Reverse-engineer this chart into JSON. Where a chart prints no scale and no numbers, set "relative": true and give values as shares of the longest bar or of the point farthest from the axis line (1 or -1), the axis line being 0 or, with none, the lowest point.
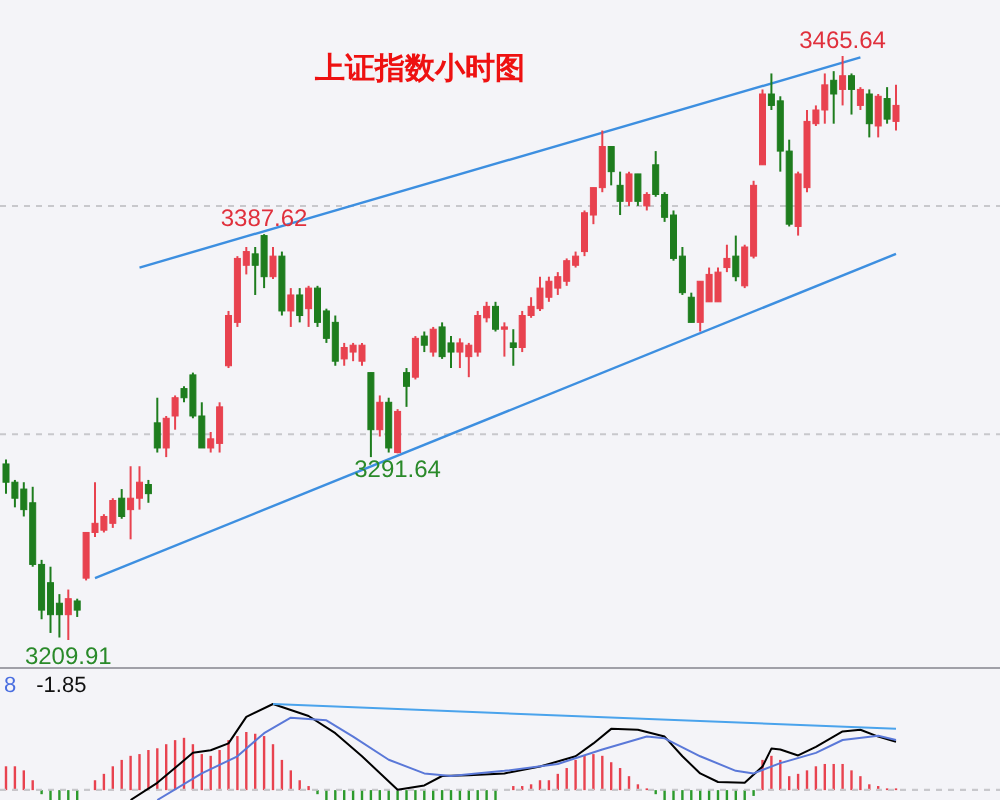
{
  "chart_data": [
    {
      "type": "candlestick",
      "title": "上证指数小时图",
      "grid": "y",
      "yticks": [
        {
          "value": 3300,
          "label": null
        },
        {
          "value": 3400,
          "label": null
        }
      ],
      "categories": [
        null,
        null,
        null,
        null,
        null,
        null,
        null,
        null,
        null,
        null,
        null,
        null,
        null,
        null,
        null,
        null,
        null,
        null,
        null,
        null,
        null,
        null,
        null,
        null,
        null,
        null,
        null,
        null,
        null,
        null,
        null,
        null,
        null,
        null,
        null,
        null,
        null,
        null,
        null,
        null,
        null,
        null,
        null,
        null,
        null,
        null,
        null,
        null,
        null,
        null,
        null,
        null,
        null,
        null,
        null,
        null,
        null,
        null,
        null,
        null,
        null,
        null,
        null,
        null,
        null,
        null,
        null,
        null,
        null,
        null,
        null,
        null,
        null,
        null,
        null,
        null,
        null,
        null,
        null,
        null,
        null,
        null,
        null,
        null,
        null,
        null,
        null,
        null,
        null,
        null,
        null,
        null,
        null,
        null,
        null,
        null,
        null,
        null,
        null,
        null,
        null
      ],
      "ohlc": [
        [
          3287,
          3289,
          3274,
          3279
        ],
        [
          3279,
          3280,
          3268,
          3272
        ],
        [
          3276,
          3279,
          3264,
          3267
        ],
        [
          3270,
          3277,
          3242,
          3243
        ],
        [
          3243,
          3245,
          3219,
          3223
        ],
        [
          3235,
          3242,
          3213,
          3221
        ],
        [
          3226,
          3230,
          3211,
          3221
        ],
        [
          3221,
          3232,
          3209.91,
          3228
        ],
        [
          3227,
          3228,
          3220,
          3223
        ],
        [
          3237,
          3257,
          3236,
          3257
        ],
        [
          3257,
          3279,
          3255,
          3261
        ],
        [
          3258,
          3265,
          3257,
          3264
        ],
        [
          3261,
          3272,
          3259,
          3271
        ],
        [
          3272,
          3276,
          3263,
          3264
        ],
        [
          3267,
          3286,
          3254,
          3272
        ],
        [
          3272,
          3286,
          3267,
          3279
        ],
        [
          3278,
          3280,
          3270,
          3274
        ],
        [
          3305,
          3316,
          3292,
          3294
        ],
        [
          3294,
          3308,
          3290,
          3307
        ],
        [
          3308,
          3317,
          3302,
          3316
        ],
        [
          3320,
          3321,
          3314,
          3316
        ],
        [
          3326,
          3327,
          3307,
          3308
        ],
        [
          3308,
          3314,
          3294,
          3294
        ],
        [
          3294,
          3301,
          3292,
          3298
        ],
        [
          3296,
          3314,
          3292,
          3312
        ],
        [
          3330,
          3354,
          3329,
          3352
        ],
        [
          3349,
          3378,
          3347,
          3377
        ],
        [
          3374,
          3382,
          3370,
          3380
        ],
        [
          3379,
          3382,
          3361,
          3374
        ],
        [
          3387,
          3387.62,
          3364,
          3369
        ],
        [
          3369,
          3382,
          3368,
          3378
        ],
        [
          3378,
          3380,
          3352,
          3354
        ],
        [
          3354,
          3364,
          3347,
          3361
        ],
        [
          3361,
          3364,
          3349,
          3352
        ],
        [
          3355,
          3365,
          3347,
          3364
        ],
        [
          3364,
          3365,
          3347,
          3349
        ],
        [
          3354,
          3355,
          3340,
          3342
        ],
        [
          3349,
          3352,
          3330,
          3332
        ],
        [
          3333,
          3340,
          3330,
          3338
        ],
        [
          3336,
          3340,
          3332,
          3339
        ],
        [
          3332,
          3340,
          3330,
          3339
        ],
        [
          3327,
          3327,
          3290,
          3302
        ],
        [
          3302,
          3317,
          3299,
          3314
        ],
        [
          3314,
          3316,
          3292,
          3294
        ],
        [
          3292,
          3311,
          3291.64,
          3310
        ],
        [
          3327,
          3329,
          3312,
          3321
        ],
        [
          3325,
          3343,
          3324,
          3342
        ],
        [
          3343,
          3345,
          3336,
          3339
        ],
        [
          3336,
          3347,
          3334,
          3346
        ],
        [
          3347,
          3349,
          3333,
          3334
        ],
        [
          3340,
          3343,
          3329,
          3336
        ],
        [
          3336,
          3342,
          3329,
          3340
        ],
        [
          3334,
          3340,
          3325,
          3339
        ],
        [
          3336,
          3354,
          3334,
          3352
        ],
        [
          3351,
          3358,
          3349,
          3356
        ],
        [
          3356,
          3358,
          3345,
          3346
        ],
        [
          3346,
          3349,
          3334,
          3347
        ],
        [
          3340,
          3346,
          3330,
          3338
        ],
        [
          3338,
          3354,
          3336,
          3352
        ],
        [
          3352,
          3360,
          3351,
          3356
        ],
        [
          3355,
          3369,
          3354,
          3364
        ],
        [
          3360,
          3369,
          3358,
          3367
        ],
        [
          3364,
          3371,
          3361,
          3369
        ],
        [
          3367,
          3377,
          3365,
          3376
        ],
        [
          3374,
          3380,
          3373,
          3378
        ],
        [
          3380,
          3398,
          3378,
          3397
        ],
        [
          3396,
          3408,
          3392,
          3408
        ],
        [
          3408,
          3433,
          3406,
          3426
        ],
        [
          3426,
          3426,
          3409,
          3415
        ],
        [
          3409,
          3415,
          3396,
          3402
        ],
        [
          3402,
          3415,
          3400,
          3414
        ],
        [
          3414,
          3414,
          3400,
          3402
        ],
        [
          3400,
          3406,
          3398,
          3405
        ],
        [
          3418,
          3424,
          3404,
          3405
        ],
        [
          3405,
          3406,
          3393,
          3395
        ],
        [
          3396,
          3398,
          3376,
          3377
        ],
        [
          3378,
          3382,
          3361,
          3362
        ],
        [
          3360,
          3362,
          3349,
          3349
        ],
        [
          3349,
          3367,
          3345,
          3367
        ],
        [
          3358,
          3373,
          3358,
          3370
        ],
        [
          3358,
          3373,
          3358,
          3371
        ],
        [
          3373,
          3383,
          3371,
          3377
        ],
        [
          3378,
          3387,
          3367,
          3369
        ],
        [
          3365,
          3383,
          3364,
          3382
        ],
        [
          3378,
          3411,
          3377,
          3409
        ],
        [
          3418,
          3451,
          3418,
          3449
        ],
        [
          3449,
          3458,
          3442,
          3444
        ],
        [
          3446,
          3448,
          3415,
          3424
        ],
        [
          3424,
          3429,
          3391,
          3392
        ],
        [
          3391,
          3415,
          3387,
          3414
        ],
        [
          3408,
          3442,
          3406,
          3437
        ],
        [
          3436,
          3444,
          3435,
          3442
        ],
        [
          3442,
          3458,
          3436,
          3453
        ],
        [
          3455,
          3459,
          3436,
          3449
        ],
        [
          3451,
          3465.64,
          3444,
          3457
        ],
        [
          3457,
          3458,
          3440,
          3451
        ],
        [
          3444,
          3452,
          3442,
          3451
        ],
        [
          3449,
          3451,
          3430,
          3436
        ],
        [
          3435,
          3449,
          3430,
          3448
        ],
        [
          3447,
          3452,
          3436,
          3438
        ],
        [
          3437,
          3453,
          3433,
          3444
        ]
      ],
      "series": [
        {
          "type": "line",
          "color": "#3d8fe0",
          "values": [
            null,
            null,
            null,
            null,
            null,
            null,
            null,
            null,
            null,
            null,
            null,
            null,
            null,
            null,
            null,
            3373,
            null,
            null,
            null,
            null,
            null,
            null,
            null,
            null,
            null,
            null,
            null,
            null,
            null,
            null,
            null,
            null,
            null,
            null,
            null,
            null,
            null,
            null,
            null,
            null,
            null,
            null,
            null,
            null,
            null,
            null,
            null,
            null,
            null,
            null,
            null,
            null,
            null,
            null,
            null,
            null,
            null,
            null,
            null,
            null,
            null,
            null,
            null,
            null,
            null,
            null,
            null,
            null,
            null,
            null,
            null,
            null,
            null,
            null,
            null,
            null,
            null,
            null,
            null,
            null,
            null,
            null,
            null,
            null,
            null,
            null,
            null,
            null,
            null,
            null,
            null,
            null,
            null,
            null,
            null,
            null,
            3465,
            null,
            null,
            null,
            null
          ]
        },
        {
          "type": "line",
          "color": "#3d8fe0",
          "values": [
            null,
            null,
            null,
            null,
            null,
            null,
            null,
            null,
            null,
            null,
            3237,
            null,
            null,
            null,
            null,
            null,
            null,
            null,
            null,
            null,
            null,
            null,
            null,
            null,
            null,
            null,
            null,
            null,
            null,
            null,
            null,
            null,
            null,
            null,
            null,
            null,
            null,
            null,
            null,
            null,
            null,
            null,
            null,
            null,
            null,
            null,
            null,
            null,
            null,
            null,
            null,
            null,
            null,
            null,
            null,
            null,
            null,
            null,
            null,
            null,
            null,
            null,
            null,
            null,
            null,
            null,
            null,
            null,
            null,
            null,
            null,
            null,
            null,
            null,
            null,
            null,
            null,
            null,
            null,
            null,
            null,
            null,
            null,
            null,
            null,
            null,
            null,
            null,
            null,
            null,
            null,
            null,
            null,
            null,
            null,
            null,
            null,
            null,
            null,
            null,
            3379
          ]
        }
      ],
      "annotations": [
        {
          "text": "3387.62",
          "y": 3387.62
        },
        {
          "text": "3291.64",
          "y": 3291.64
        },
        {
          "text": "3465.64",
          "y": 3465.64
        },
        {
          "text": "3209.91",
          "y": 3209.91
        }
      ]
    },
    {
      "type": "bar",
      "relative": true,
      "ref_lines": [
        {
          "axis": "y",
          "value": 0,
          "line_style": "dashed",
          "color": "#c8c8cc"
        }
      ],
      "categories": [
        null,
        null,
        null,
        null,
        null,
        null,
        null,
        null,
        null,
        null,
        null,
        null,
        null,
        null,
        null,
        null,
        null,
        null,
        null,
        null,
        null,
        null,
        null,
        null,
        null,
        null,
        null,
        null,
        null,
        null,
        null,
        null,
        null,
        null,
        null,
        null,
        null,
        null,
        null,
        null,
        null,
        null,
        null,
        null,
        null,
        null,
        null,
        null,
        null,
        null,
        null,
        null,
        null,
        null,
        null,
        null,
        null,
        null,
        null,
        null,
        null,
        null,
        null,
        null,
        null,
        null,
        null,
        null,
        null,
        null,
        null,
        null,
        null,
        null,
        null,
        null,
        null,
        null,
        null,
        null,
        null,
        null,
        null,
        null,
        null,
        null,
        null,
        null,
        null,
        null,
        null,
        null,
        null,
        null,
        null,
        null,
        null,
        null,
        null,
        null,
        null
      ],
      "values": [
        0.41,
        0.41,
        0.34,
        0.17,
        -0.07,
        -0.17,
        -0.17,
        -0.17,
        -0.17,
        null,
        0.17,
        0.28,
        0.41,
        0.52,
        0.59,
        0.62,
        0.69,
        0.72,
        0.79,
        0.86,
        0.9,
        0.79,
        0.62,
        0.59,
        0.69,
        0.86,
        0.93,
        1.0,
        0.97,
        0.93,
        0.79,
        0.52,
        0.34,
        0.17,
        0.07,
        -0.07,
        -0.17,
        -0.17,
        -0.17,
        -0.17,
        -0.17,
        -0.17,
        -0.17,
        -0.17,
        -0.17,
        -0.17,
        -0.17,
        -0.17,
        -0.17,
        -0.17,
        -0.17,
        -0.17,
        -0.17,
        -0.17,
        -0.17,
        -0.17,
        null,
        0.07,
        0.07,
        0.1,
        0.17,
        0.17,
        0.28,
        0.38,
        0.52,
        0.59,
        0.62,
        0.59,
        0.48,
        0.38,
        0.24,
        0.1,
        0.03,
        -0.07,
        -0.17,
        -0.17,
        -0.17,
        -0.17,
        -0.17,
        -0.17,
        -0.17,
        -0.17,
        -0.17,
        -0.17,
        -0.1,
        0.52,
        0.59,
        0.52,
        0.24,
        0.28,
        0.34,
        0.41,
        0.45,
        0.45,
        0.45,
        0.34,
        0.24,
        0.1,
        0.07,
        0.03,
        0.03
      ]
    },
    {
      "type": "line",
      "relative": true,
      "ref_lines": [
        {
          "axis": "y",
          "value": 0,
          "line_style": "dashed",
          "color": "#c8c8cc"
        }
      ],
      "categories": [
        null,
        null,
        null,
        null,
        null,
        null,
        null,
        null,
        null,
        null,
        null,
        null,
        null,
        null,
        null,
        null,
        null,
        null,
        null,
        null,
        null,
        null,
        null,
        null,
        null,
        null,
        null,
        null,
        null,
        null,
        null,
        null,
        null,
        null,
        null,
        null,
        null,
        null,
        null,
        null,
        null,
        null,
        null,
        null,
        null,
        null,
        null,
        null,
        null,
        null,
        null,
        null,
        null,
        null,
        null,
        null,
        null,
        null,
        null,
        null,
        null,
        null,
        null,
        null,
        null,
        null,
        null,
        null,
        null,
        null,
        null,
        null,
        null,
        null,
        null,
        null,
        null,
        null,
        null,
        null,
        null,
        null,
        null,
        null,
        null,
        null,
        null,
        null,
        null,
        null,
        null,
        null,
        null,
        null,
        null,
        null,
        null,
        null,
        null,
        null,
        null
      ],
      "series": [
        {
          "color": "#000000",
          "values": [
            null,
            null,
            null,
            null,
            null,
            null,
            null,
            null,
            null,
            null,
            null,
            null,
            null,
            null,
            -0.12,
            null,
            null,
            0.08,
            null,
            null,
            null,
            0.43,
            null,
            0.46,
            null,
            0.54,
            null,
            0.85,
            null,
            null,
            1.0,
            null,
            null,
            null,
            0.86,
            null,
            null,
            0.66,
            null,
            null,
            0.39,
            null,
            null,
            null,
            0,
            null,
            null,
            0.05,
            null,
            0.16,
            null,
            null,
            0.17,
            null,
            null,
            null,
            0.19,
            null,
            null,
            null,
            0.27,
            null,
            null,
            null,
            0.39,
            null,
            0.54,
            null,
            0.71,
            null,
            null,
            0.7,
            null,
            null,
            0.62,
            null,
            0.39,
            null,
            0.19,
            null,
            0.09,
            null,
            null,
            0.08,
            null,
            0.27,
            0.48,
            0.47,
            null,
            0.4,
            null,
            0.5,
            null,
            null,
            0.68,
            null,
            0.7,
            null,
            0.62,
            null,
            0.56
          ]
        },
        {
          "color": "#5a78d8",
          "values": [
            null,
            null,
            null,
            null,
            null,
            null,
            null,
            null,
            null,
            null,
            null,
            null,
            null,
            null,
            null,
            null,
            null,
            -0.12,
            null,
            null,
            null,
            null,
            0.19,
            null,
            null,
            null,
            0.39,
            null,
            null,
            0.66,
            null,
            null,
            0.84,
            null,
            null,
            null,
            0.81,
            null,
            null,
            0.62,
            null,
            null,
            null,
            0.35,
            null,
            null,
            null,
            0.19,
            null,
            null,
            0.16,
            null,
            null,
            null,
            null,
            null,
            0.22,
            null,
            null,
            null,
            null,
            null,
            0.3,
            null,
            null,
            null,
            null,
            0.47,
            null,
            null,
            null,
            null,
            0.62,
            null,
            0.6,
            null,
            null,
            null,
            0.39,
            null,
            null,
            null,
            0.22,
            null,
            0.19,
            null,
            null,
            0.31,
            null,
            null,
            null,
            0.43,
            null,
            null,
            0.58,
            null,
            null,
            null,
            0.63,
            null,
            0.58
          ]
        },
        {
          "color": "#4aa3ec",
          "values": [
            null,
            null,
            null,
            null,
            null,
            null,
            null,
            null,
            null,
            null,
            null,
            null,
            null,
            null,
            null,
            null,
            null,
            null,
            null,
            null,
            null,
            null,
            null,
            null,
            null,
            null,
            null,
            null,
            null,
            null,
            1.0,
            null,
            null,
            null,
            null,
            null,
            null,
            null,
            null,
            null,
            null,
            null,
            null,
            null,
            null,
            null,
            null,
            null,
            null,
            null,
            null,
            null,
            null,
            null,
            null,
            null,
            null,
            null,
            null,
            null,
            null,
            null,
            null,
            null,
            null,
            null,
            null,
            null,
            null,
            null,
            null,
            null,
            null,
            null,
            null,
            null,
            null,
            null,
            null,
            null,
            null,
            null,
            null,
            null,
            null,
            null,
            null,
            null,
            null,
            null,
            null,
            null,
            null,
            null,
            null,
            null,
            null,
            null,
            null,
            null,
            0.71
          ]
        }
      ],
      "annotations": [
        "8",
        "-1.85"
      ]
    }
  ]
}
